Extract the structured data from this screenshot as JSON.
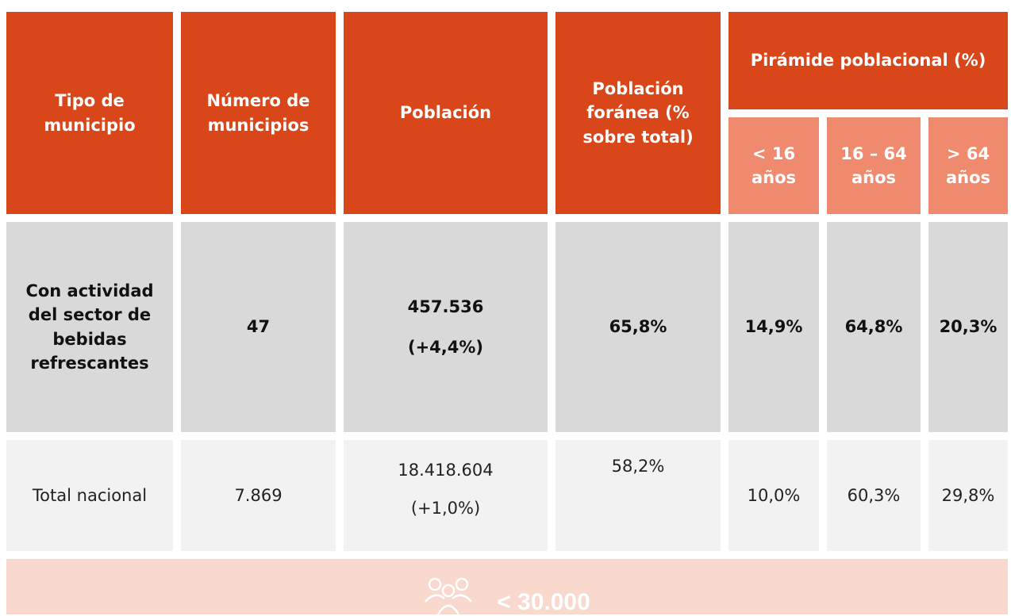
{
  "table": {
    "header": {
      "tipo": "Tipo de municipio",
      "numero": "Número de municipios",
      "poblacion": "Población",
      "foranea": "Población foránea (% sobre total)",
      "piramide": "Pirámide poblacional (%)",
      "age_groups": [
        "< 16 años",
        "16 – 64 años",
        "> 64 años"
      ]
    },
    "rows": [
      [
        "Con actividad del sector de bebidas refrescantes",
        "47",
        "457.536",
        "(+4,4%)",
        "65,8%",
        "14,9%",
        "64,8%",
        "20,3%"
      ],
      [
        "Total nacional",
        "7.869",
        "18.418.604",
        "(+1,0%)",
        "58,2%",
        "10,0%",
        "60,3%",
        "29,8%"
      ]
    ]
  },
  "banner": "< 30.000"
}
